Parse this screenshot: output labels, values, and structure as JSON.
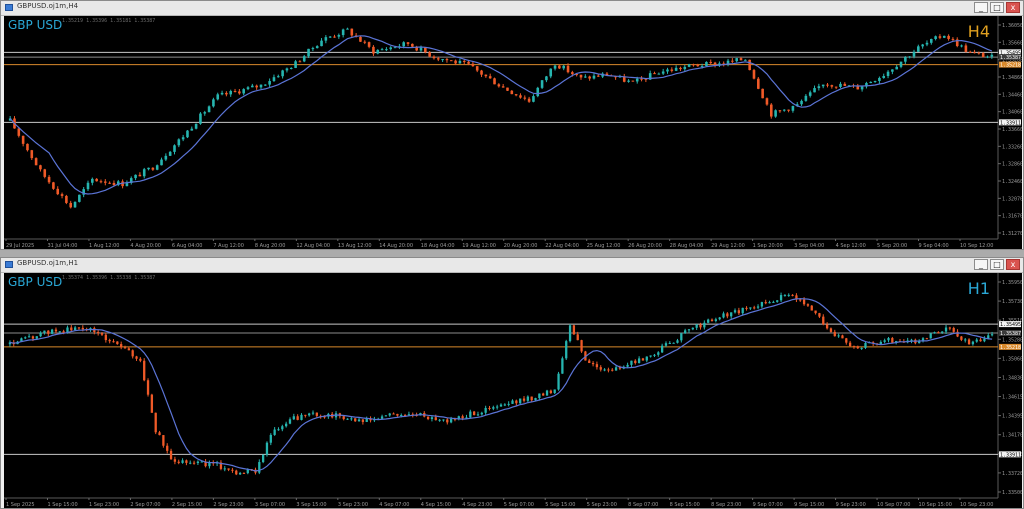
{
  "colors": {
    "bg": "#000000",
    "bull": "#26b5b0",
    "bear": "#f05a28",
    "ma": "#5b74d6",
    "hline": "#c8c8c8",
    "orange_line": "#d9892b",
    "grey_line": "#8c8c8c",
    "axis_text": "#9a9a9a",
    "h4_label": "#e0a020",
    "h1_label": "#2aa8d6"
  },
  "window_controls": {
    "minimize": "_",
    "maximize": "□",
    "close": "x"
  },
  "windows": [
    {
      "id": "h4",
      "title": "GBPUSD.oj1m,H4",
      "symbol_label": "GBP USD",
      "ohlc": "1.35219 1.35396 1.35181 1.35387",
      "timeframe": "H4",
      "price_ticks": [
        "1.36050",
        "1.35660",
        "1.35260",
        "1.34860",
        "1.34460",
        "1.34060",
        "1.33660",
        "1.33260",
        "1.32860",
        "1.32460",
        "1.32070",
        "1.31670",
        "1.31270"
      ],
      "time_ticks": [
        "29 Jul 2025",
        "31 Jul 04:00",
        "1 Aug 12:00",
        "4 Aug 20:00",
        "6 Aug 04:00",
        "7 Aug 12:00",
        "8 Aug 20:00",
        "12 Aug 04:00",
        "13 Aug 12:00",
        "14 Aug 20:00",
        "18 Aug 04:00",
        "19 Aug 12:00",
        "20 Aug 20:00",
        "22 Aug 04:00",
        "25 Aug 12:00",
        "26 Aug 20:00",
        "28 Aug 04:00",
        "29 Aug 12:00",
        "1 Sep 20:00",
        "3 Sep 04:00",
        "4 Sep 12:00",
        "5 Sep 20:00",
        "9 Sep 04:00",
        "10 Sep 12:00"
      ],
      "price_range": [
        1.3127,
        1.3625
      ],
      "hlines": [
        {
          "price": 1.35495,
          "label": "1.35495",
          "kind": "white"
        },
        {
          "price": 1.35387,
          "label": "1.35387",
          "kind": "grey"
        },
        {
          "price": 1.35218,
          "label": "1.35218",
          "kind": "orange"
        },
        {
          "price": 1.33911,
          "label": "1.33911",
          "kind": "white"
        }
      ],
      "keypoints": [
        [
          0,
          1.3395
        ],
        [
          7,
          1.328
        ],
        [
          14,
          1.32
        ],
        [
          19,
          1.3262
        ],
        [
          26,
          1.3252
        ],
        [
          33,
          1.329
        ],
        [
          40,
          1.336
        ],
        [
          48,
          1.345
        ],
        [
          58,
          1.3475
        ],
        [
          66,
          1.3525
        ],
        [
          72,
          1.3578
        ],
        [
          78,
          1.36
        ],
        [
          84,
          1.3552
        ],
        [
          92,
          1.357
        ],
        [
          98,
          1.354
        ],
        [
          106,
          1.352
        ],
        [
          114,
          1.347
        ],
        [
          120,
          1.344
        ],
        [
          126,
          1.3525
        ],
        [
          132,
          1.349
        ],
        [
          138,
          1.35
        ],
        [
          144,
          1.348
        ],
        [
          150,
          1.3505
        ],
        [
          158,
          1.352
        ],
        [
          165,
          1.3525
        ],
        [
          170,
          1.3535
        ],
        [
          176,
          1.341
        ],
        [
          182,
          1.343
        ],
        [
          188,
          1.348
        ],
        [
          196,
          1.347
        ],
        [
          202,
          1.35
        ],
        [
          210,
          1.356
        ],
        [
          216,
          1.359
        ],
        [
          222,
          1.3548
        ],
        [
          227,
          1.3539
        ]
      ]
    },
    {
      "id": "h1",
      "title": "GBPUSD.oj1m,H1",
      "symbol_label": "GBP USD",
      "ohlc": "1.35374 1.35396 1.35338 1.35387",
      "timeframe": "H1",
      "price_ticks": [
        "1.35950",
        "1.35730",
        "1.35510",
        "1.35280",
        "1.35060",
        "1.34830",
        "1.34615",
        "1.34395",
        "1.34170",
        "1.33950",
        "1.33720",
        "1.33500"
      ],
      "time_ticks": [
        "1 Sep 2025",
        "1 Sep 15:00",
        "1 Sep 23:00",
        "2 Sep 07:00",
        "2 Sep 15:00",
        "2 Sep 23:00",
        "3 Sep 07:00",
        "3 Sep 15:00",
        "3 Sep 23:00",
        "4 Sep 07:00",
        "4 Sep 15:00",
        "4 Sep 23:00",
        "5 Sep 07:00",
        "5 Sep 15:00",
        "5 Sep 23:00",
        "8 Sep 07:00",
        "8 Sep 15:00",
        "8 Sep 23:00",
        "9 Sep 07:00",
        "9 Sep 15:00",
        "9 Sep 23:00",
        "10 Sep 07:00",
        "10 Sep 15:00",
        "10 Sep 23:00"
      ],
      "price_range": [
        1.3338,
        1.3608
      ],
      "hlines": [
        {
          "price": 1.35495,
          "label": "1.35495",
          "kind": "white"
        },
        {
          "price": 1.35387,
          "label": "1.35387",
          "kind": "grey"
        },
        {
          "price": 1.35218,
          "label": "1.35218",
          "kind": "orange"
        },
        {
          "price": 1.33911,
          "label": "1.33911",
          "kind": "white"
        }
      ],
      "keypoints": [
        [
          0,
          1.3525
        ],
        [
          10,
          1.354
        ],
        [
          20,
          1.3545
        ],
        [
          28,
          1.3525
        ],
        [
          34,
          1.3505
        ],
        [
          38,
          1.342
        ],
        [
          42,
          1.3385
        ],
        [
          48,
          1.3382
        ],
        [
          54,
          1.3378
        ],
        [
          60,
          1.3368
        ],
        [
          64,
          1.3372
        ],
        [
          68,
          1.3415
        ],
        [
          74,
          1.3435
        ],
        [
          80,
          1.344
        ],
        [
          86,
          1.3438
        ],
        [
          92,
          1.343
        ],
        [
          100,
          1.344
        ],
        [
          108,
          1.3438
        ],
        [
          114,
          1.3432
        ],
        [
          120,
          1.344
        ],
        [
          128,
          1.345
        ],
        [
          136,
          1.346
        ],
        [
          142,
          1.347
        ],
        [
          146,
          1.355
        ],
        [
          150,
          1.3505
        ],
        [
          156,
          1.3492
        ],
        [
          164,
          1.3505
        ],
        [
          170,
          1.352
        ],
        [
          178,
          1.3545
        ],
        [
          186,
          1.356
        ],
        [
          194,
          1.357
        ],
        [
          202,
          1.3585
        ],
        [
          208,
          1.3575
        ],
        [
          214,
          1.354
        ],
        [
          220,
          1.352
        ],
        [
          228,
          1.353
        ],
        [
          236,
          1.3528
        ],
        [
          244,
          1.3545
        ],
        [
          250,
          1.3525
        ],
        [
          256,
          1.3538
        ]
      ]
    }
  ]
}
